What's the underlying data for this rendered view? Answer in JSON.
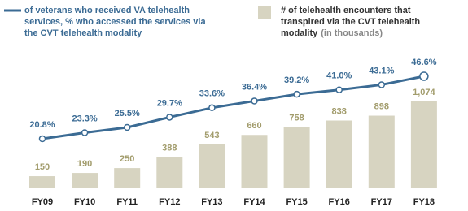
{
  "chart_data": {
    "type": "bar-line",
    "categories": [
      "FY09",
      "FY10",
      "FY11",
      "FY12",
      "FY13",
      "FY14",
      "FY15",
      "FY16",
      "FY17",
      "FY18"
    ],
    "series": [
      {
        "name": "of veterans who received VA telehealth services, % who accessed the services via the CVT telehealth modality",
        "type": "line",
        "color": "#3b6b94",
        "values": [
          20.8,
          23.3,
          25.5,
          29.7,
          33.6,
          36.4,
          39.2,
          41.0,
          43.1,
          46.6
        ],
        "value_labels": [
          "20.8%",
          "23.3%",
          "25.5%",
          "29.7%",
          "33.6%",
          "36.4%",
          "39.2%",
          "41.0%",
          "43.1%",
          "46.6%"
        ]
      },
      {
        "name": "# of telehealth encounters that transpired via the CVT telehealth modality",
        "unit_note": "(in thousands)",
        "type": "bar",
        "color": "#d7d4c1",
        "label_color": "#a29c6c",
        "values": [
          150,
          190,
          250,
          388,
          543,
          660,
          758,
          838,
          898,
          1074
        ],
        "value_labels": [
          "150",
          "190",
          "250",
          "388",
          "543",
          "660",
          "758",
          "838",
          "898",
          "1,074"
        ]
      }
    ]
  }
}
